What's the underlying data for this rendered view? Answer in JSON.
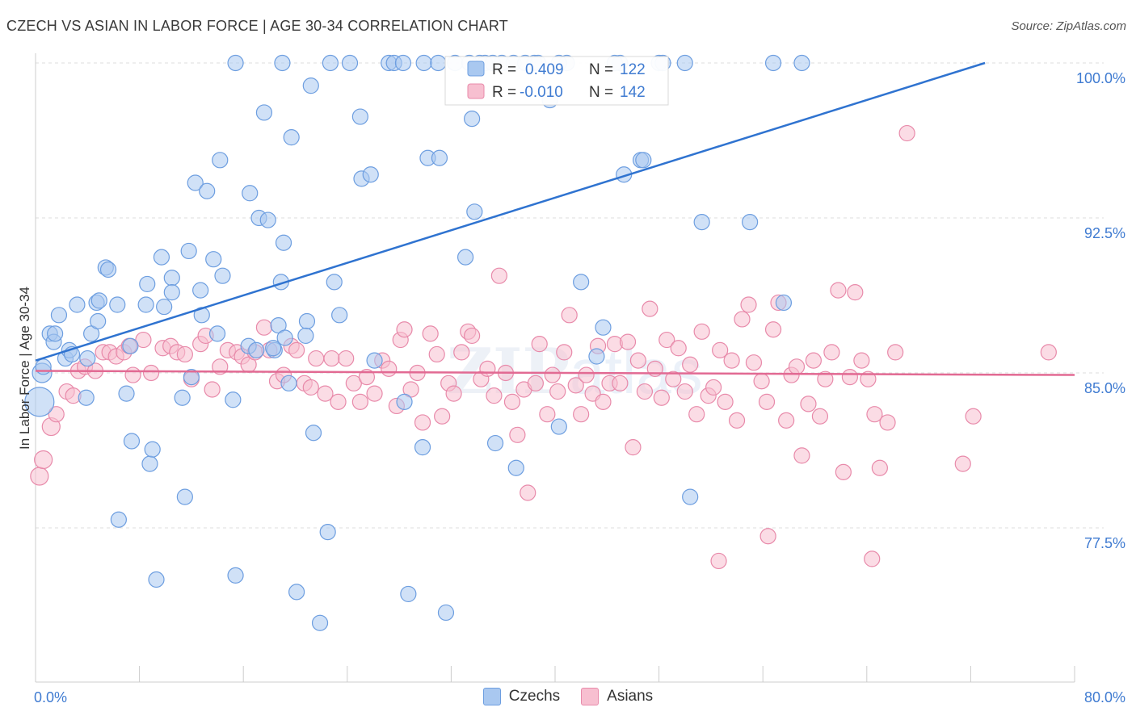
{
  "header": {
    "title": "CZECH VS ASIAN IN LABOR FORCE | AGE 30-34 CORRELATION CHART",
    "source": "Source: ZipAtlas.com"
  },
  "watermark": {
    "zip": "ZIP",
    "atlas": "atlas"
  },
  "colors": {
    "czech_fill": "#a9c8f0",
    "czech_stroke": "#6d9ee0",
    "czech_line": "#2f73d0",
    "asian_fill": "#f7bfd0",
    "asian_stroke": "#e88aaa",
    "asian_line": "#e26a93",
    "axis_label": "#3f7bd1",
    "grid": "#dddddd"
  },
  "legend_top": {
    "rows": [
      {
        "r_label": "R = ",
        "r_value": "0.409",
        "n_label": "N = ",
        "n_value": "122"
      },
      {
        "r_label": "R = ",
        "r_value": "-0.010",
        "n_label": "N = ",
        "n_value": "142"
      }
    ]
  },
  "legend_bottom": [
    {
      "label": "Czechs"
    },
    {
      "label": "Asians"
    }
  ],
  "chart_data": {
    "type": "scatter",
    "title": "CZECH VS ASIAN IN LABOR FORCE | AGE 30-34 CORRELATION CHART",
    "xlabel": "",
    "ylabel": "In Labor Force | Age 30-34",
    "xlim": [
      0,
      80
    ],
    "ylim": [
      70.5,
      100.8
    ],
    "x_tick_labels": [
      "0.0%",
      "80.0%"
    ],
    "y_ticks": [
      77.5,
      85.0,
      92.5,
      100.0
    ],
    "y_tick_labels": [
      "77.5%",
      "85.0%",
      "92.5%",
      "100.0%"
    ],
    "grid": "horizontal dashed",
    "legend": "top-center, bottom-center",
    "series": [
      {
        "name": "Czechs",
        "r": 0.409,
        "n": 122,
        "trend": {
          "x": [
            0,
            73.1
          ],
          "y": [
            85.6,
            100.0
          ]
        },
        "points": [
          [
            0.3,
            83.6
          ],
          [
            0.5,
            85.0
          ],
          [
            0.6,
            85.3
          ],
          [
            1.1,
            86.9
          ],
          [
            1.4,
            86.5
          ],
          [
            1.5,
            86.9
          ],
          [
            1.8,
            87.8
          ],
          [
            2.3,
            85.7
          ],
          [
            2.6,
            86.1
          ],
          [
            2.8,
            85.9
          ],
          [
            3.2,
            88.3
          ],
          [
            4.0,
            85.7
          ],
          [
            3.9,
            83.8
          ],
          [
            4.3,
            86.9
          ],
          [
            4.7,
            88.4
          ],
          [
            4.9,
            88.5
          ],
          [
            4.8,
            87.5
          ],
          [
            5.4,
            90.1
          ],
          [
            5.6,
            90.0
          ],
          [
            6.3,
            88.3
          ],
          [
            7.3,
            86.3
          ],
          [
            7.0,
            84.0
          ],
          [
            7.4,
            81.7
          ],
          [
            8.6,
            89.3
          ],
          [
            8.5,
            88.3
          ],
          [
            8.8,
            80.6
          ],
          [
            9.0,
            81.3
          ],
          [
            9.7,
            90.6
          ],
          [
            9.9,
            88.2
          ],
          [
            10.5,
            89.6
          ],
          [
            10.5,
            88.9
          ],
          [
            11.3,
            83.8
          ],
          [
            11.8,
            90.9
          ],
          [
            12.0,
            84.8
          ],
          [
            12.3,
            94.2
          ],
          [
            13.2,
            93.8
          ],
          [
            12.7,
            89.0
          ],
          [
            12.8,
            87.8
          ],
          [
            13.7,
            90.5
          ],
          [
            14.0,
            86.9
          ],
          [
            14.2,
            95.3
          ],
          [
            14.4,
            89.7
          ],
          [
            15.2,
            83.7
          ],
          [
            15.4,
            75.2
          ],
          [
            16.4,
            86.3
          ],
          [
            16.5,
            93.7
          ],
          [
            17.0,
            86.1
          ],
          [
            17.2,
            92.5
          ],
          [
            17.6,
            97.6
          ],
          [
            17.9,
            92.4
          ],
          [
            18.4,
            86.1
          ],
          [
            18.7,
            87.3
          ],
          [
            18.3,
            86.2
          ],
          [
            18.9,
            89.4
          ],
          [
            19.1,
            91.3
          ],
          [
            19.5,
            84.5
          ],
          [
            19.2,
            86.7
          ],
          [
            19.7,
            96.4
          ],
          [
            20.1,
            74.4
          ],
          [
            20.9,
            87.5
          ],
          [
            20.8,
            86.8
          ],
          [
            21.2,
            98.9
          ],
          [
            21.4,
            82.1
          ],
          [
            21.9,
            72.9
          ],
          [
            22.5,
            77.3
          ],
          [
            23.0,
            89.4
          ],
          [
            23.4,
            87.8
          ],
          [
            25.0,
            97.4
          ],
          [
            25.1,
            94.4
          ],
          [
            25.8,
            94.6
          ],
          [
            26.1,
            85.6
          ],
          [
            27.2,
            100.0
          ],
          [
            27.6,
            100.0
          ],
          [
            28.4,
            83.6
          ],
          [
            28.7,
            74.3
          ],
          [
            29.9,
            100.0
          ],
          [
            29.8,
            81.4
          ],
          [
            30.2,
            95.4
          ],
          [
            31.1,
            95.4
          ],
          [
            31.6,
            73.4
          ],
          [
            32.3,
            100.0
          ],
          [
            33.8,
            92.8
          ],
          [
            33.1,
            90.6
          ],
          [
            33.6,
            97.3
          ],
          [
            34.2,
            100.0
          ],
          [
            35.4,
            81.6
          ],
          [
            35.9,
            100.0
          ],
          [
            36.8,
            100.0
          ],
          [
            37.0,
            80.4
          ],
          [
            38.4,
            100.0
          ],
          [
            39.6,
            98.2
          ],
          [
            40.3,
            82.4
          ],
          [
            40.9,
            100.0
          ],
          [
            42.0,
            89.4
          ],
          [
            43.7,
            87.2
          ],
          [
            43.2,
            85.8
          ],
          [
            45.3,
            94.6
          ],
          [
            45.0,
            100.0
          ],
          [
            46.6,
            95.3
          ],
          [
            46.8,
            95.3
          ],
          [
            48.0,
            100.0
          ],
          [
            48.3,
            100.0
          ],
          [
            50.4,
            79.0
          ],
          [
            51.3,
            92.3
          ],
          [
            55.0,
            92.3
          ],
          [
            56.8,
            100.0
          ],
          [
            57.6,
            88.4
          ],
          [
            59.0,
            100.0
          ],
          [
            6.4,
            77.9
          ],
          [
            11.5,
            79.0
          ],
          [
            19.0,
            100.0
          ],
          [
            9.3,
            75.0
          ],
          [
            15.4,
            100.0
          ],
          [
            22.7,
            100.0
          ],
          [
            24.2,
            100.0
          ],
          [
            28.3,
            100.0
          ],
          [
            31.0,
            100.0
          ],
          [
            34.6,
            100.0
          ],
          [
            35.2,
            100.0
          ],
          [
            37.7,
            100.0
          ],
          [
            38.7,
            100.0
          ],
          [
            40.3,
            100.0
          ],
          [
            44.6,
            100.0
          ],
          [
            50.0,
            100.0
          ],
          [
            33.4,
            100.0
          ]
        ]
      },
      {
        "name": "Asians",
        "r": -0.01,
        "n": 142,
        "trend": {
          "x": [
            0,
            80
          ],
          "y": [
            85.1,
            84.9
          ]
        },
        "points": [
          [
            0.3,
            80.0
          ],
          [
            0.6,
            80.8
          ],
          [
            1.2,
            82.4
          ],
          [
            1.6,
            83.0
          ],
          [
            2.4,
            84.1
          ],
          [
            2.9,
            83.9
          ],
          [
            3.3,
            85.1
          ],
          [
            3.8,
            85.3
          ],
          [
            4.6,
            85.1
          ],
          [
            5.2,
            86.0
          ],
          [
            5.7,
            86.0
          ],
          [
            6.2,
            85.8
          ],
          [
            6.8,
            86.0
          ],
          [
            7.2,
            86.3
          ],
          [
            7.5,
            84.9
          ],
          [
            8.3,
            86.6
          ],
          [
            8.9,
            85.0
          ],
          [
            9.8,
            86.2
          ],
          [
            10.4,
            86.3
          ],
          [
            10.9,
            86.0
          ],
          [
            11.5,
            85.9
          ],
          [
            12.0,
            84.7
          ],
          [
            12.7,
            86.4
          ],
          [
            13.1,
            86.8
          ],
          [
            13.6,
            84.2
          ],
          [
            14.2,
            85.3
          ],
          [
            14.8,
            86.1
          ],
          [
            15.5,
            86.0
          ],
          [
            15.9,
            85.8
          ],
          [
            16.4,
            85.4
          ],
          [
            16.9,
            86.0
          ],
          [
            17.6,
            87.2
          ],
          [
            18.0,
            86.1
          ],
          [
            18.6,
            84.6
          ],
          [
            19.1,
            84.9
          ],
          [
            19.7,
            86.3
          ],
          [
            20.1,
            86.1
          ],
          [
            20.7,
            84.5
          ],
          [
            21.2,
            84.3
          ],
          [
            21.6,
            85.7
          ],
          [
            22.3,
            84.0
          ],
          [
            22.8,
            85.7
          ],
          [
            23.3,
            83.6
          ],
          [
            23.9,
            85.7
          ],
          [
            24.5,
            84.5
          ],
          [
            25.0,
            83.6
          ],
          [
            25.5,
            84.8
          ],
          [
            26.1,
            84.0
          ],
          [
            26.7,
            85.6
          ],
          [
            27.2,
            85.2
          ],
          [
            27.8,
            83.4
          ],
          [
            28.1,
            86.6
          ],
          [
            28.4,
            87.1
          ],
          [
            28.9,
            84.2
          ],
          [
            29.4,
            85.0
          ],
          [
            29.8,
            82.6
          ],
          [
            30.4,
            86.9
          ],
          [
            30.9,
            85.9
          ],
          [
            31.3,
            82.9
          ],
          [
            31.8,
            84.5
          ],
          [
            32.2,
            84.0
          ],
          [
            32.8,
            86.0
          ],
          [
            33.3,
            87.0
          ],
          [
            33.6,
            86.8
          ],
          [
            34.3,
            84.7
          ],
          [
            34.8,
            85.2
          ],
          [
            35.3,
            83.9
          ],
          [
            35.7,
            89.7
          ],
          [
            36.2,
            85.0
          ],
          [
            36.7,
            83.6
          ],
          [
            37.1,
            82.0
          ],
          [
            37.6,
            84.2
          ],
          [
            37.9,
            79.2
          ],
          [
            38.5,
            84.5
          ],
          [
            38.8,
            86.4
          ],
          [
            39.4,
            83.0
          ],
          [
            39.8,
            84.9
          ],
          [
            40.2,
            84.1
          ],
          [
            40.7,
            86.0
          ],
          [
            41.1,
            87.8
          ],
          [
            41.6,
            84.4
          ],
          [
            42.0,
            83.0
          ],
          [
            42.4,
            84.9
          ],
          [
            42.9,
            84.0
          ],
          [
            43.3,
            86.3
          ],
          [
            43.7,
            83.6
          ],
          [
            44.2,
            84.5
          ],
          [
            44.6,
            86.4
          ],
          [
            45.0,
            84.5
          ],
          [
            45.6,
            86.5
          ],
          [
            46.0,
            81.4
          ],
          [
            46.4,
            85.6
          ],
          [
            46.9,
            84.1
          ],
          [
            47.3,
            88.1
          ],
          [
            47.7,
            85.2
          ],
          [
            48.2,
            83.8
          ],
          [
            48.6,
            86.6
          ],
          [
            49.1,
            84.7
          ],
          [
            49.5,
            86.2
          ],
          [
            50.0,
            84.1
          ],
          [
            50.4,
            85.4
          ],
          [
            50.9,
            83.0
          ],
          [
            51.3,
            87.0
          ],
          [
            51.8,
            83.9
          ],
          [
            52.2,
            84.3
          ],
          [
            52.7,
            86.1
          ],
          [
            53.1,
            83.6
          ],
          [
            53.6,
            85.6
          ],
          [
            54.0,
            82.7
          ],
          [
            54.4,
            87.6
          ],
          [
            54.9,
            88.3
          ],
          [
            55.3,
            85.5
          ],
          [
            55.9,
            84.6
          ],
          [
            56.3,
            83.6
          ],
          [
            56.8,
            87.1
          ],
          [
            57.2,
            88.4
          ],
          [
            57.8,
            82.7
          ],
          [
            58.2,
            84.9
          ],
          [
            58.6,
            85.3
          ],
          [
            59.0,
            81.0
          ],
          [
            59.5,
            83.5
          ],
          [
            59.9,
            85.6
          ],
          [
            60.4,
            82.9
          ],
          [
            60.8,
            84.7
          ],
          [
            61.3,
            86.0
          ],
          [
            61.8,
            89.0
          ],
          [
            62.2,
            80.2
          ],
          [
            62.7,
            84.8
          ],
          [
            63.1,
            88.9
          ],
          [
            63.6,
            85.6
          ],
          [
            64.1,
            84.7
          ],
          [
            64.6,
            83.0
          ],
          [
            65.0,
            80.4
          ],
          [
            65.6,
            82.6
          ],
          [
            66.2,
            86.0
          ],
          [
            67.1,
            96.6
          ],
          [
            64.4,
            76.0
          ],
          [
            56.4,
            77.1
          ],
          [
            52.6,
            75.9
          ],
          [
            72.2,
            82.9
          ],
          [
            78.0,
            86.0
          ],
          [
            71.4,
            80.6
          ]
        ]
      }
    ]
  }
}
